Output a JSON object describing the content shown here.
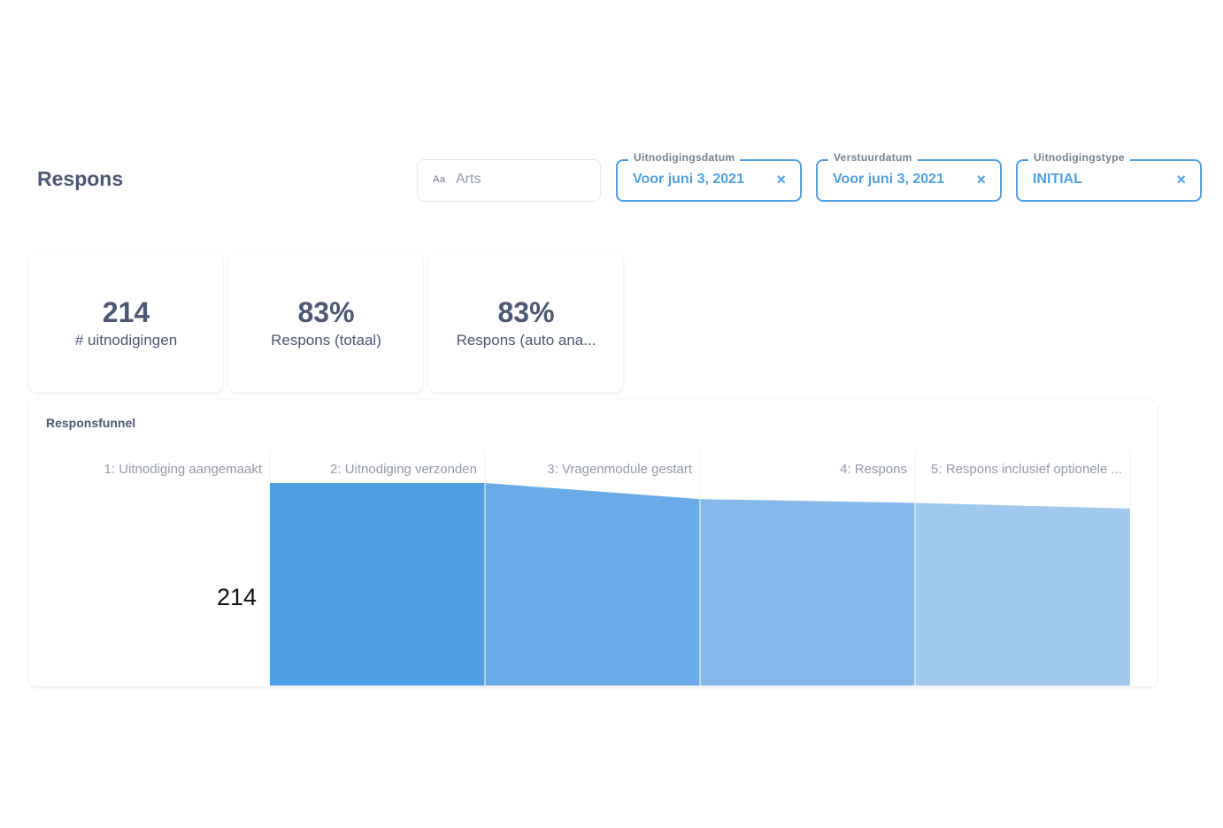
{
  "header": {
    "title": "Respons"
  },
  "filters": {
    "search": {
      "icon": "text-aa-icon",
      "icon_text": "Aa",
      "value": "Arts"
    },
    "items": [
      {
        "label": "Uitnodigingsdatum",
        "value": "Voor juni 3, 2021",
        "clear": "×"
      },
      {
        "label": "Verstuurdatum",
        "value": "Voor juni 3, 2021",
        "clear": "×"
      },
      {
        "label": "Uitnodigingstype",
        "value": "INITIAL",
        "clear": "×"
      }
    ]
  },
  "cards": [
    {
      "value": "214",
      "label": "# uitnodigingen"
    },
    {
      "value": "83%",
      "label": "Respons (totaal)"
    },
    {
      "value": "83%",
      "label": "Respons (auto ana..."
    }
  ],
  "funnel": {
    "title": "Responsfunnel",
    "first_value": "214",
    "colors": [
      "#509ee3",
      "#6aaae6",
      "#84b9ea",
      "#a0c9ef"
    ],
    "chart_data": {
      "type": "area",
      "categories": [
        "1: Uitnodiging aangemaakt",
        "2: Uitnodiging verzonden",
        "3: Vragenmodule gestart",
        "4: Respons",
        "5: Respons inclusief optionele ..."
      ],
      "values": [
        214,
        214,
        197,
        193,
        187
      ],
      "ylim": [
        0,
        214
      ]
    }
  }
}
